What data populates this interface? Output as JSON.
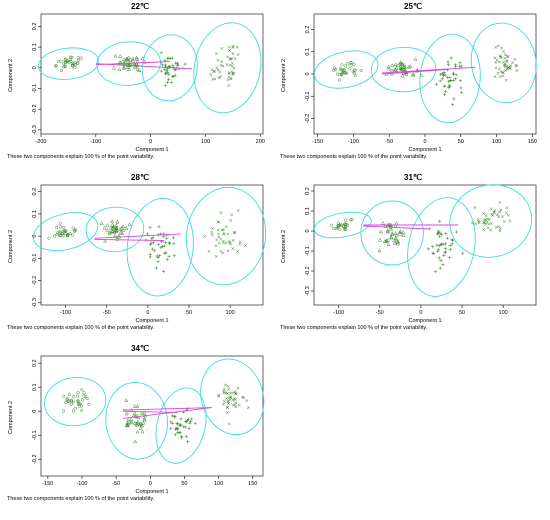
{
  "chart_data": [
    {
      "type": "scatter",
      "title": "22℃",
      "xlabel": "Component 1",
      "ylabel": "Component 2",
      "caption": "These two components explain 100 % of the point variability.",
      "xlim": [
        -200,
        205
      ],
      "ylim": [
        -0.32,
        0.26
      ],
      "xticks": [
        -200,
        -100,
        0,
        100,
        200
      ],
      "yticks": [
        -0.3,
        -0.2,
        -0.1,
        0,
        0.1,
        0.2
      ],
      "clusters": [
        {
          "center": [
            -150,
            0.02
          ],
          "rx": 55,
          "ry": 0.075,
          "angle": 6,
          "marker": "circle",
          "n": 32
        },
        {
          "center": [
            -40,
            0.02
          ],
          "rx": 58,
          "ry": 0.105,
          "angle": 4,
          "marker": "triangle",
          "n": 40
        },
        {
          "center": [
            35,
            0.0
          ],
          "rx": 50,
          "ry": 0.16,
          "angle": -8,
          "marker": "plus",
          "n": 40
        },
        {
          "center": [
            140,
            0.0
          ],
          "rx": 60,
          "ry": 0.22,
          "angle": -12,
          "marker": "cross",
          "n": 45
        }
      ],
      "segments": [
        [
          -100,
          0.02,
          75,
          -0.005
        ],
        [
          -100,
          0.015,
          35,
          0.03
        ]
      ]
    },
    {
      "type": "scatter",
      "title": "25℃",
      "xlabel": "Component 1",
      "ylabel": "Component 2",
      "caption": "These two components explain 100 % of the point variability.",
      "xlim": [
        -155,
        155
      ],
      "ylim": [
        -0.27,
        0.27
      ],
      "xticks": [
        -150,
        -100,
        -50,
        0,
        50,
        100,
        150
      ],
      "yticks": [
        -0.2,
        -0.1,
        0,
        0.1,
        0.2
      ],
      "clusters": [
        {
          "center": [
            -110,
            0.02
          ],
          "rx": 45,
          "ry": 0.08,
          "angle": 12,
          "marker": "circle",
          "n": 32
        },
        {
          "center": [
            -30,
            0.02
          ],
          "rx": 45,
          "ry": 0.1,
          "angle": 2,
          "marker": "triangle",
          "n": 38
        },
        {
          "center": [
            35,
            -0.02
          ],
          "rx": 42,
          "ry": 0.2,
          "angle": -5,
          "marker": "plus",
          "n": 40
        },
        {
          "center": [
            110,
            0.05
          ],
          "rx": 45,
          "ry": 0.18,
          "angle": 10,
          "marker": "cross",
          "n": 45
        }
      ],
      "segments": [
        [
          -60,
          0.005,
          70,
          0.03
        ],
        [
          -60,
          0.0,
          30,
          0.02
        ]
      ]
    },
    {
      "type": "scatter",
      "title": "28℃",
      "xlabel": "Component 1",
      "ylabel": "Component 2",
      "caption": "These two components explain 100 % of the point variability.",
      "xlim": [
        -130,
        140
      ],
      "ylim": [
        -0.31,
        0.23
      ],
      "xticks": [
        -100,
        -50,
        0,
        50,
        100
      ],
      "yticks": [
        -0.3,
        -0.2,
        -0.1,
        0,
        0.1,
        0.2
      ],
      "clusters": [
        {
          "center": [
            -100,
            0.02
          ],
          "rx": 40,
          "ry": 0.08,
          "angle": 14,
          "marker": "circle",
          "n": 30
        },
        {
          "center": [
            -40,
            0.03
          ],
          "rx": 35,
          "ry": 0.1,
          "angle": 4,
          "marker": "triangle",
          "n": 36
        },
        {
          "center": [
            15,
            -0.05
          ],
          "rx": 40,
          "ry": 0.22,
          "angle": -6,
          "marker": "plus",
          "n": 40
        },
        {
          "center": [
            95,
            0.0
          ],
          "rx": 48,
          "ry": 0.22,
          "angle": -8,
          "marker": "cross",
          "n": 42
        }
      ],
      "segments": [
        [
          -65,
          -0.01,
          40,
          0.01
        ],
        [
          -65,
          -0.015,
          20,
          -0.02
        ]
      ]
    },
    {
      "type": "scatter",
      "title": "31℃",
      "xlabel": "Component 1",
      "ylabel": "Component 2",
      "caption": "These two components explain 100 % of the point variability.",
      "xlim": [
        -130,
        140
      ],
      "ylim": [
        -0.37,
        0.23
      ],
      "xticks": [
        -100,
        -50,
        0,
        50,
        100
      ],
      "yticks": [
        -0.3,
        -0.2,
        -0.1,
        0,
        0.1,
        0.2
      ],
      "clusters": [
        {
          "center": [
            -95,
            0.03
          ],
          "rx": 35,
          "ry": 0.06,
          "angle": 10,
          "marker": "circle",
          "n": 26
        },
        {
          "center": [
            -35,
            -0.01
          ],
          "rx": 38,
          "ry": 0.16,
          "angle": 2,
          "marker": "triangle",
          "n": 38
        },
        {
          "center": [
            25,
            -0.08
          ],
          "rx": 40,
          "ry": 0.25,
          "angle": -12,
          "marker": "plus",
          "n": 40
        },
        {
          "center": [
            85,
            0.05
          ],
          "rx": 50,
          "ry": 0.18,
          "angle": 12,
          "marker": "cross",
          "n": 42
        }
      ],
      "segments": [
        [
          -70,
          0.03,
          45,
          0.03
        ],
        [
          -70,
          0.025,
          10,
          0.01
        ]
      ]
    },
    {
      "type": "scatter",
      "title": "34℃",
      "xlabel": "Component 1",
      "ylabel": "Component 2",
      "caption": "These two components explain 100 % of the point variability.",
      "xlim": [
        -160,
        165
      ],
      "ylim": [
        -0.27,
        0.23
      ],
      "xticks": [
        -150,
        -100,
        -50,
        0,
        50,
        100,
        150
      ],
      "yticks": [
        -0.2,
        -0.1,
        0,
        0.1,
        0.2
      ],
      "clusters": [
        {
          "center": [
            -110,
            0.04
          ],
          "rx": 45,
          "ry": 0.1,
          "angle": 8,
          "marker": "circle",
          "n": 32
        },
        {
          "center": [
            -20,
            -0.04
          ],
          "rx": 45,
          "ry": 0.16,
          "angle": 6,
          "marker": "triangle",
          "n": 38
        },
        {
          "center": [
            45,
            -0.06
          ],
          "rx": 35,
          "ry": 0.16,
          "angle": -14,
          "marker": "plus",
          "n": 38
        },
        {
          "center": [
            120,
            0.06
          ],
          "rx": 45,
          "ry": 0.16,
          "angle": 18,
          "marker": "cross",
          "n": 42
        }
      ],
      "segments": [
        [
          -40,
          0.005,
          90,
          0.015
        ],
        [
          -40,
          0.0,
          40,
          -0.005
        ],
        [
          -40,
          -0.03,
          90,
          0.015
        ]
      ]
    }
  ],
  "colors": {
    "points": "#2e7d1f",
    "ellipse": "#3fdcdc",
    "segment": "#e040e0",
    "axis": "#000000"
  }
}
